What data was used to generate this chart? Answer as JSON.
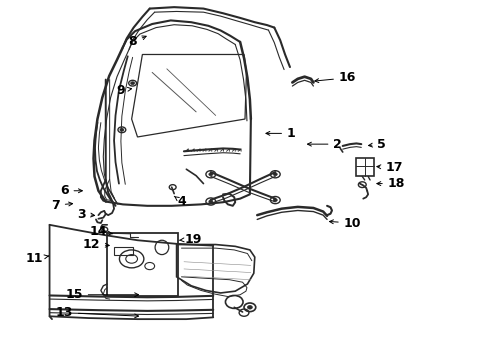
{
  "bg_color": "#ffffff",
  "line_color": "#2a2a2a",
  "label_color": "#000000",
  "label_font_size": 9,
  "label_bold": true,
  "arrow_lw": 0.7,
  "labels": {
    "1": {
      "lpos": [
        0.595,
        0.37
      ],
      "apos": [
        0.535,
        0.37
      ]
    },
    "2": {
      "lpos": [
        0.69,
        0.4
      ],
      "apos": [
        0.62,
        0.4
      ]
    },
    "3": {
      "lpos": [
        0.165,
        0.595
      ],
      "apos": [
        0.2,
        0.6
      ]
    },
    "4": {
      "lpos": [
        0.37,
        0.56
      ],
      "apos": [
        0.355,
        0.545
      ]
    },
    "5": {
      "lpos": [
        0.78,
        0.4
      ],
      "apos": [
        0.745,
        0.405
      ]
    },
    "6": {
      "lpos": [
        0.13,
        0.53
      ],
      "apos": [
        0.175,
        0.53
      ]
    },
    "7": {
      "lpos": [
        0.112,
        0.57
      ],
      "apos": [
        0.155,
        0.565
      ]
    },
    "8": {
      "lpos": [
        0.27,
        0.115
      ],
      "apos": [
        0.305,
        0.095
      ]
    },
    "9": {
      "lpos": [
        0.245,
        0.25
      ],
      "apos": [
        0.27,
        0.245
      ]
    },
    "10": {
      "lpos": [
        0.72,
        0.62
      ],
      "apos": [
        0.665,
        0.615
      ]
    },
    "11": {
      "lpos": [
        0.068,
        0.72
      ],
      "apos": [
        0.105,
        0.71
      ]
    },
    "12": {
      "lpos": [
        0.185,
        0.68
      ],
      "apos": [
        0.23,
        0.683
      ]
    },
    "13": {
      "lpos": [
        0.13,
        0.87
      ],
      "apos": [
        0.29,
        0.88
      ]
    },
    "14": {
      "lpos": [
        0.2,
        0.645
      ],
      "apos": [
        0.23,
        0.65
      ]
    },
    "15": {
      "lpos": [
        0.15,
        0.82
      ],
      "apos": [
        0.29,
        0.82
      ]
    },
    "16": {
      "lpos": [
        0.71,
        0.215
      ],
      "apos": [
        0.635,
        0.225
      ]
    },
    "17": {
      "lpos": [
        0.805,
        0.465
      ],
      "apos": [
        0.762,
        0.462
      ]
    },
    "18": {
      "lpos": [
        0.81,
        0.51
      ],
      "apos": [
        0.762,
        0.51
      ]
    },
    "19": {
      "lpos": [
        0.395,
        0.665
      ],
      "apos": [
        0.365,
        0.668
      ]
    }
  }
}
